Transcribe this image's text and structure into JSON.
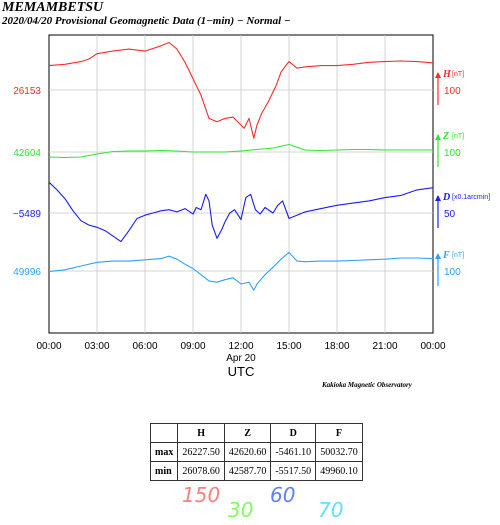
{
  "title": "MEMAMBETSU",
  "subtitle": "2020/04/20  Provisional Geomagnetic Data (1−min)  − Normal −",
  "observatory": "Kakioka Magnetic Observatory",
  "chart_data": {
    "type": "line",
    "x_unit": "hours UTC",
    "x_ticks": [
      "00:00",
      "03:00",
      "06:00",
      "09:00",
      "12:00",
      "15:00",
      "18:00",
      "21:00",
      "00:00"
    ],
    "date_label": "Apr 20",
    "xlabel": "UTC",
    "xlim": [
      0,
      24
    ],
    "grid": true,
    "series": [
      {
        "name": "H",
        "unit": "[nT]",
        "color": "#ff2a2a",
        "left_label": "26153",
        "scale_label": "100",
        "x": [
          0,
          1,
          2,
          2.5,
          3,
          4,
          5,
          6,
          7,
          7.5,
          8,
          8.5,
          9,
          9.5,
          10,
          10.5,
          11,
          11.5,
          12,
          12.2,
          12.5,
          12.8,
          13,
          13.3,
          13.7,
          14.2,
          14.5,
          14.8,
          15,
          15.5,
          16,
          17,
          18,
          19,
          20,
          21,
          22,
          23,
          24
        ],
        "values": [
          26190,
          26192,
          26196,
          26200,
          26208,
          26212,
          26215,
          26212,
          26220,
          26225,
          26215,
          26195,
          26170,
          26145,
          26110,
          26105,
          26110,
          26112,
          26100,
          26095,
          26110,
          26080,
          26100,
          26118,
          26135,
          26160,
          26180,
          26190,
          26196,
          26186,
          26188,
          26190,
          26190,
          26192,
          26195,
          26196,
          26197,
          26196,
          26194
        ]
      },
      {
        "name": "Z",
        "unit": "[nT]",
        "color": "#2ee62e",
        "left_label": "42604",
        "scale_label": "100",
        "x": [
          0,
          1,
          2,
          3,
          4,
          5,
          6,
          7,
          8,
          9,
          10,
          11,
          12,
          13,
          14,
          15,
          16,
          17,
          18,
          19,
          20,
          21,
          22,
          23,
          24
        ],
        "values": [
          42594,
          42593,
          42594,
          42600,
          42605,
          42606,
          42606,
          42607,
          42606,
          42604,
          42604,
          42604,
          42606,
          42609,
          42612,
          42619,
          42608,
          42607,
          42608,
          42609,
          42609,
          42608,
          42608,
          42608,
          42608
        ]
      },
      {
        "name": "D",
        "unit": "[x0.1arcmin]",
        "color": "#1a1aff",
        "left_label": "−5489",
        "scale_label": "50",
        "x": [
          0,
          0.5,
          1,
          1.5,
          2,
          2.5,
          3,
          3.5,
          4,
          4.5,
          5,
          5.5,
          6,
          6.5,
          7,
          7.5,
          8,
          8.5,
          9,
          9.2,
          9.5,
          9.8,
          10,
          10.2,
          10.5,
          10.8,
          11,
          11.3,
          11.6,
          12,
          12.3,
          12.6,
          12.9,
          13.2,
          13.5,
          14,
          14.3,
          14.6,
          15,
          16,
          17,
          18,
          19,
          20,
          21,
          22,
          23,
          24
        ],
        "values": [
          -5461,
          -5468,
          -5476,
          -5487,
          -5496,
          -5500,
          -5502,
          -5505,
          -5510,
          -5515,
          -5505,
          -5494,
          -5491,
          -5489,
          -5487,
          -5486,
          -5488,
          -5485,
          -5490,
          -5484,
          -5486,
          -5472,
          -5478,
          -5500,
          -5512,
          -5504,
          -5497,
          -5489,
          -5486,
          -5495,
          -5475,
          -5472,
          -5486,
          -5490,
          -5484,
          -5489,
          -5482,
          -5478,
          -5494,
          -5488,
          -5485,
          -5482,
          -5480,
          -5478,
          -5475,
          -5473,
          -5468,
          -5466
        ]
      },
      {
        "name": "F",
        "unit": "[nT]",
        "color": "#2ea0ff",
        "left_label": "49996",
        "scale_label": "100",
        "x": [
          0,
          1,
          2,
          3,
          4,
          5,
          6,
          7,
          7.5,
          8,
          8.5,
          9,
          9.5,
          10,
          10.5,
          11,
          11.5,
          12,
          12.5,
          12.8,
          13,
          13.5,
          14,
          14.5,
          15,
          15.5,
          16,
          17,
          18,
          19,
          20,
          21,
          22,
          23,
          24
        ],
        "values": [
          49995,
          49998,
          50004,
          50010,
          50012,
          50012,
          50014,
          50016,
          50020,
          50015,
          50007,
          50000,
          49990,
          49980,
          49978,
          49982,
          49985,
          49975,
          49978,
          49965,
          49975,
          49990,
          50002,
          50015,
          50026,
          50012,
          50011,
          50012,
          50012,
          50013,
          50014,
          50015,
          50017,
          50017,
          50016
        ]
      }
    ]
  },
  "stats_table": {
    "headers": [
      "",
      "H",
      "Z",
      "D",
      "F"
    ],
    "rows": [
      [
        "max",
        "26227.50",
        "42620.60",
        "-5461.10",
        "50032.70"
      ],
      [
        "min",
        "26078.60",
        "42587.70",
        "-5517.50",
        "49960.10"
      ]
    ]
  },
  "handwritten": [
    {
      "text": "150",
      "color": "#ff7f7f"
    },
    {
      "text": "30",
      "color": "#7fff5f"
    },
    {
      "text": "60",
      "color": "#5f7fff"
    },
    {
      "text": "70",
      "color": "#5fdfff"
    }
  ]
}
